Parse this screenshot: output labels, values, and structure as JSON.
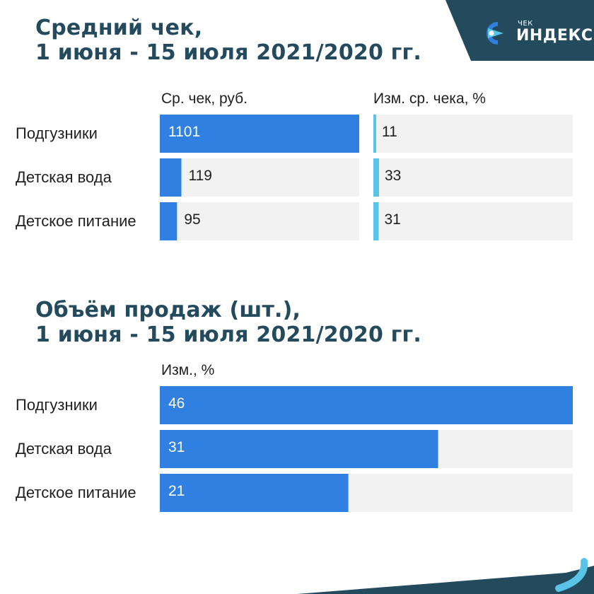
{
  "logo": {
    "small": "ЧЕК",
    "big": "ИНДЕКС"
  },
  "colors": {
    "bar": "#2f80e0",
    "change_bar": "#59c4e8",
    "track": "#f2f2f2",
    "title": "#244a5d",
    "dark": "#244a5d"
  },
  "chart_data": [
    {
      "type": "bar",
      "title_lines": [
        "Средний чек,",
        "1 июня - 15 июля 2021/2020 гг."
      ],
      "categories": [
        "Подгузники",
        "Детская вода",
        "Детское питание"
      ],
      "series": [
        {
          "name": "Ср. чек, руб.",
          "values": [
            1101,
            119,
            95
          ],
          "max": 1101
        },
        {
          "name": "Изм. ср. чека, %",
          "values": [
            11,
            33,
            31
          ],
          "max": 46
        }
      ]
    },
    {
      "type": "bar",
      "title_lines": [
        "Объём продаж (шт.),",
        "1 июня - 15 июля 2021/2020 гг."
      ],
      "categories": [
        "Подгузники",
        "Детская вода",
        "Детское питание"
      ],
      "series": [
        {
          "name": "Изм., %",
          "values": [
            46,
            31,
            21
          ],
          "max": 46
        }
      ]
    }
  ]
}
